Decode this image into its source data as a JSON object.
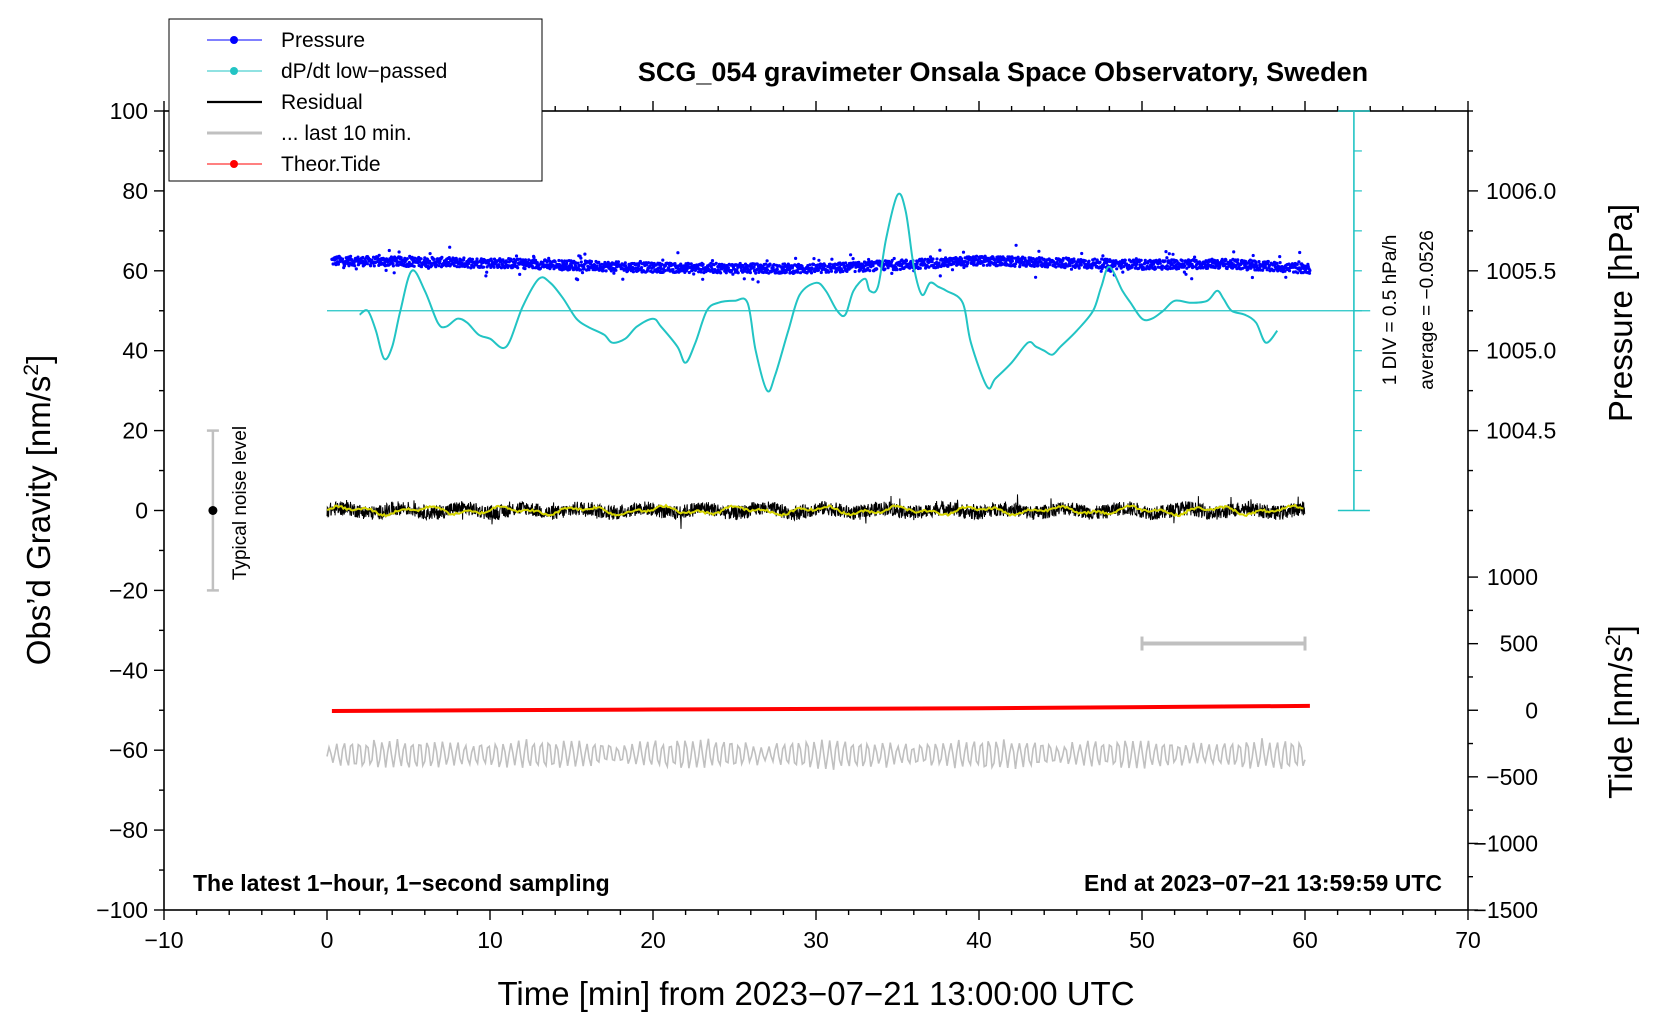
{
  "chart_data": {
    "type": "line",
    "title": "SCG_054 gravimeter Onsala Space Observatory, Sweden",
    "xlabel": "Time [min] from 2023−07−21 13:00:00 UTC",
    "ylabel_left": "Obs’d Gravity [nm/s",
    "ylabel_left_sup": "2",
    "ylabel_left_tail": "]",
    "ylabel_right_pressure": "Pressure [hPa]",
    "ylabel_right_tide": "Tide [nm/s",
    "ylabel_right_tide_sup": "2",
    "ylabel_right_tide_tail": "]",
    "xlim": [
      -10,
      70
    ],
    "ylim": [
      -100,
      100
    ],
    "x_ticks": [
      "−10",
      "0",
      "10",
      "20",
      "30",
      "40",
      "50",
      "60",
      "70"
    ],
    "x_tick_values": [
      -10,
      0,
      10,
      20,
      30,
      40,
      50,
      60,
      70
    ],
    "y_ticks": [
      "100",
      "80",
      "60",
      "40",
      "20",
      "0",
      "−20",
      "−40",
      "−60",
      "−80",
      "−100"
    ],
    "y_tick_values": [
      100,
      80,
      60,
      40,
      20,
      0,
      -20,
      -40,
      -60,
      -80,
      -100
    ],
    "pressure_axis": {
      "ticks": [
        "1006.0",
        "1005.5",
        "1005.0",
        "1004.5"
      ],
      "values": [
        1006.0,
        1005.5,
        1005.0,
        1004.5
      ],
      "gravity_equiv": [
        80,
        60,
        40,
        20
      ]
    },
    "tide_axis": {
      "ticks": [
        "1000",
        "500",
        "0",
        "−500",
        "−1000",
        "−1500"
      ],
      "values": [
        1000,
        500,
        0,
        -500,
        -1000,
        -1500
      ],
      "gravity_equiv": [
        -16.67,
        -33.33,
        -50,
        -66.67,
        -83.33,
        -100
      ]
    },
    "legend": [
      {
        "label": "Pressure",
        "color": "#0000ff",
        "marker": true
      },
      {
        "label": "dP/dt low−passed",
        "color": "#22c4c4",
        "marker": true
      },
      {
        "label": "Residual",
        "color": "#000000",
        "marker": false
      },
      {
        "label": "... last 10 min.",
        "color": "#c0c0c0",
        "marker": false
      },
      {
        "label": "Theor.Tide",
        "color": "#ff0000",
        "marker": true
      }
    ],
    "annotations": {
      "bottom_left": "The latest 1−hour, 1−second sampling",
      "bottom_right": "End at 2023−07−21 13:59:59 UTC",
      "noise": "Typical noise level",
      "div": "1 DIV = 0.5 hPa/h",
      "average": "average = −0.0526"
    },
    "noise_bar": {
      "x": -7,
      "center": 0,
      "range": [
        -20,
        20
      ]
    },
    "dpdt_scale_bar": {
      "x": 63,
      "range": [
        0,
        100
      ],
      "baseline": 50
    },
    "last10_bar": {
      "x_range": [
        50,
        60
      ],
      "y": -33.3
    },
    "series": [
      {
        "name": "Pressure",
        "color": "#0000ff",
        "x_range": [
          0.3,
          60.3
        ],
        "trend": [
          [
            0.3,
            62.5
          ],
          [
            10,
            62
          ],
          [
            20,
            60.8
          ],
          [
            30,
            60.5
          ],
          [
            35,
            61.5
          ],
          [
            40,
            62.5
          ],
          [
            50,
            61.5
          ],
          [
            55,
            61.8
          ],
          [
            60.3,
            60.5
          ]
        ]
      },
      {
        "name": "dP/dt low-passed",
        "color": "#22c4c4",
        "points": [
          [
            2.0,
            49
          ],
          [
            2.5,
            50
          ],
          [
            3.0,
            45
          ],
          [
            3.5,
            38
          ],
          [
            4.0,
            41
          ],
          [
            4.5,
            50
          ],
          [
            5.2,
            60
          ],
          [
            6.0,
            55
          ],
          [
            6.8,
            47
          ],
          [
            7.3,
            46
          ],
          [
            8.0,
            48
          ],
          [
            8.6,
            47
          ],
          [
            9.3,
            44
          ],
          [
            10.0,
            43
          ],
          [
            11.0,
            41
          ],
          [
            12.0,
            51
          ],
          [
            13.0,
            58
          ],
          [
            13.7,
            57
          ],
          [
            14.5,
            53
          ],
          [
            15.3,
            48
          ],
          [
            16.0,
            46
          ],
          [
            17.0,
            44
          ],
          [
            17.5,
            42
          ],
          [
            18.3,
            43
          ],
          [
            19.0,
            46
          ],
          [
            20.0,
            48
          ],
          [
            20.5,
            46
          ],
          [
            21.5,
            41
          ],
          [
            22.0,
            37
          ],
          [
            22.6,
            42
          ],
          [
            23.3,
            50
          ],
          [
            24.0,
            52
          ],
          [
            25.0,
            52.5
          ],
          [
            25.8,
            52
          ],
          [
            26.3,
            40
          ],
          [
            27.0,
            30
          ],
          [
            27.5,
            34
          ],
          [
            28.3,
            45
          ],
          [
            29.0,
            54
          ],
          [
            30.0,
            57
          ],
          [
            30.6,
            55
          ],
          [
            31.3,
            50
          ],
          [
            31.8,
            49
          ],
          [
            32.3,
            55
          ],
          [
            33.0,
            58
          ],
          [
            33.3,
            55
          ],
          [
            33.8,
            56
          ],
          [
            34.3,
            68
          ],
          [
            35.0,
            79
          ],
          [
            35.5,
            75
          ],
          [
            36.0,
            61
          ],
          [
            36.5,
            54
          ],
          [
            37.0,
            57
          ],
          [
            37.5,
            56
          ],
          [
            38.0,
            55
          ],
          [
            39.0,
            52
          ],
          [
            39.5,
            42
          ],
          [
            40.5,
            31
          ],
          [
            41.0,
            33
          ],
          [
            42.0,
            37
          ],
          [
            43.0,
            42
          ],
          [
            43.5,
            41
          ],
          [
            44.0,
            40
          ],
          [
            44.5,
            39
          ],
          [
            45.0,
            41
          ],
          [
            46.0,
            45
          ],
          [
            47.0,
            50
          ],
          [
            47.5,
            56
          ],
          [
            48.0,
            61
          ],
          [
            48.8,
            55
          ],
          [
            49.3,
            52
          ],
          [
            50.0,
            48
          ],
          [
            50.6,
            48
          ],
          [
            51.3,
            50
          ],
          [
            52.0,
            52.5
          ],
          [
            53.0,
            52
          ],
          [
            54.0,
            52.5
          ],
          [
            54.6,
            55
          ],
          [
            55.0,
            53
          ],
          [
            55.5,
            50
          ],
          [
            56.3,
            49
          ],
          [
            57.0,
            47
          ],
          [
            57.6,
            42
          ],
          [
            58.3,
            45
          ]
        ]
      },
      {
        "name": "Residual",
        "color": "#000000",
        "x_range": [
          0,
          60
        ],
        "center": 0,
        "amplitude": 4
      },
      {
        "name": "Residual smoothed",
        "color": "#d4d400",
        "x_range": [
          0,
          60
        ],
        "center": 0,
        "amplitude": 1.2
      },
      {
        "name": "... last 10 min.",
        "color": "#c0c0c0",
        "x_range": [
          0,
          60
        ],
        "center": -61,
        "amplitude": 3.5
      },
      {
        "name": "Theor.Tide",
        "color": "#ff0000",
        "points": [
          [
            0.3,
            -50.2
          ],
          [
            20,
            -49.8
          ],
          [
            40,
            -49.5
          ],
          [
            60.3,
            -48.9
          ]
        ]
      }
    ]
  }
}
